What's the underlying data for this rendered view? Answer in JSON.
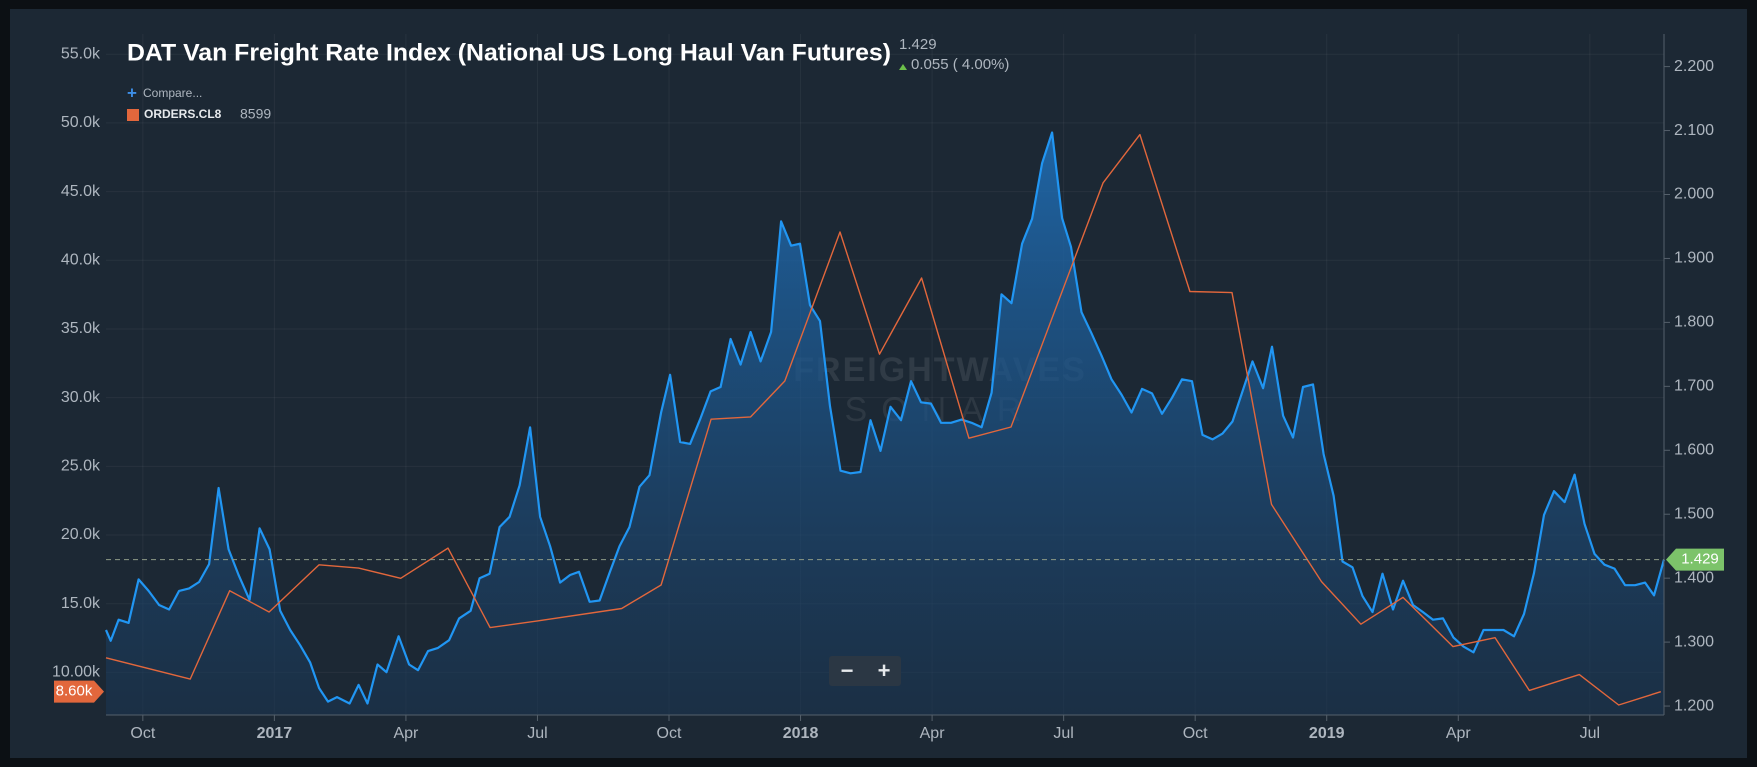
{
  "chart_data": {
    "type": "line",
    "title": "DAT Van Freight Rate Index (National US Long Haul Van Futures)",
    "price": 1.429,
    "change_label": "0.055 ( 4.00%)",
    "compare_label": "Compare...",
    "watermark": [
      "FREIGHTWAVES",
      "SONAR"
    ],
    "controls": [
      "−",
      "+"
    ],
    "xlim": [
      2016.68,
      2019.641
    ],
    "xticks": [
      {
        "value": 2016.75,
        "label": "Oct"
      },
      2017,
      {
        "value": 2017.25,
        "label": "Apr"
      },
      {
        "value": 2017.5,
        "label": "Jul"
      },
      {
        "value": 2017.75,
        "label": "Oct"
      },
      2018,
      {
        "value": 2018.25,
        "label": "Apr"
      },
      {
        "value": 2018.5,
        "label": "Jul"
      },
      {
        "value": 2018.75,
        "label": "Oct"
      },
      2019,
      {
        "value": 2019.25,
        "label": "Apr"
      },
      {
        "value": 2019.5,
        "label": "Jul"
      }
    ],
    "ylim": [
      6900,
      56470
    ],
    "yticks": [
      {
        "value": 10000,
        "label": "10.00k"
      },
      {
        "value": 15000,
        "label": "15.0k"
      },
      {
        "value": 20000,
        "label": "20.0k"
      },
      {
        "value": 25000,
        "label": "25.0k"
      },
      {
        "value": 30000,
        "label": "30.0k"
      },
      {
        "value": 35000,
        "label": "35.0k"
      },
      {
        "value": 40000,
        "label": "40.0k"
      },
      {
        "value": 45000,
        "label": "45.0k"
      },
      {
        "value": 50000,
        "label": "50.0k"
      },
      {
        "value": 55000,
        "label": "55.0k"
      }
    ],
    "y2lim": [
      1.186,
      2.251
    ],
    "y2ticks": [
      {
        "value": 1.2,
        "label": "1.200"
      },
      {
        "value": 1.3,
        "label": "1.300"
      },
      {
        "value": 1.4,
        "label": "1.400"
      },
      {
        "value": 1.5,
        "label": "1.500"
      },
      {
        "value": 1.6,
        "label": "1.600"
      },
      {
        "value": 1.7,
        "label": "1.700"
      },
      {
        "value": 1.8,
        "label": "1.800"
      },
      {
        "value": 1.9,
        "label": "1.900"
      },
      {
        "value": 2.0,
        "label": "2.000"
      },
      {
        "value": 2.1,
        "label": "2.100"
      },
      {
        "value": 2.2,
        "label": "2.200"
      }
    ],
    "grid": true,
    "series": [
      {
        "color": "#2196f3",
        "axis": "y2",
        "fill": true,
        "x": [
          2016.68,
          2016.689,
          2016.704,
          2016.723,
          2016.742,
          2016.761,
          2016.781,
          2016.8,
          2016.819,
          2016.838,
          2016.857,
          2016.876,
          2016.894,
          2016.913,
          2016.932,
          2016.953,
          2016.972,
          2016.991,
          2017.011,
          2017.03,
          2017.049,
          2017.068,
          2017.085,
          2017.102,
          2017.119,
          2017.143,
          2017.16,
          2017.177,
          2017.196,
          2017.213,
          2017.236,
          2017.256,
          2017.273,
          2017.292,
          2017.311,
          2017.332,
          2017.351,
          2017.373,
          2017.39,
          2017.409,
          2017.428,
          2017.447,
          2017.466,
          2017.486,
          2017.505,
          2017.524,
          2017.543,
          2017.562,
          2017.579,
          2017.599,
          2017.618,
          2017.637,
          2017.656,
          2017.675,
          2017.694,
          2017.713,
          2017.735,
          2017.752,
          2017.771,
          2017.79,
          2017.809,
          2017.829,
          2017.848,
          2017.867,
          2017.886,
          2017.905,
          2017.924,
          2017.944,
          2017.963,
          2017.982,
          2017.999,
          2018.018,
          2018.037,
          2018.056,
          2018.076,
          2018.095,
          2018.114,
          2018.133,
          2018.152,
          2018.171,
          2018.191,
          2018.21,
          2018.229,
          2018.248,
          2018.267,
          2018.286,
          2018.306,
          2018.325,
          2018.344,
          2018.363,
          2018.382,
          2018.401,
          2018.421,
          2018.44,
          2018.459,
          2018.478,
          2018.497,
          2018.514,
          2018.534,
          2018.553,
          2018.572,
          2018.591,
          2018.61,
          2018.629,
          2018.649,
          2018.668,
          2018.687,
          2018.706,
          2018.725,
          2018.744,
          2018.764,
          2018.783,
          2018.802,
          2018.821,
          2018.84,
          2018.859,
          2018.879,
          2018.896,
          2018.917,
          2018.936,
          2018.955,
          2018.974,
          2018.994,
          2019.013,
          2019.03,
          2019.049,
          2019.068,
          2019.087,
          2019.106,
          2019.126,
          2019.145,
          2019.164,
          2019.183,
          2019.202,
          2019.221,
          2019.241,
          2019.26,
          2019.279,
          2019.298,
          2019.317,
          2019.336,
          2019.356,
          2019.375,
          2019.394,
          2019.413,
          2019.432,
          2019.452,
          2019.471,
          2019.49,
          2019.509,
          2019.528,
          2019.547,
          2019.567,
          2019.586,
          2019.605,
          2019.622,
          2019.641
        ],
        "values": [
          1.319,
          1.302,
          1.335,
          1.33,
          1.398,
          1.38,
          1.358,
          1.351,
          1.38,
          1.384,
          1.394,
          1.422,
          1.541,
          1.445,
          1.405,
          1.366,
          1.478,
          1.445,
          1.349,
          1.319,
          1.295,
          1.268,
          1.228,
          1.207,
          1.214,
          1.204,
          1.233,
          1.204,
          1.265,
          1.253,
          1.309,
          1.265,
          1.256,
          1.286,
          1.291,
          1.303,
          1.337,
          1.349,
          1.4,
          1.407,
          1.48,
          1.496,
          1.545,
          1.636,
          1.496,
          1.45,
          1.393,
          1.405,
          1.41,
          1.363,
          1.365,
          1.408,
          1.45,
          1.48,
          1.543,
          1.561,
          1.659,
          1.718,
          1.613,
          1.61,
          1.648,
          1.692,
          1.699,
          1.774,
          1.734,
          1.785,
          1.739,
          1.785,
          1.958,
          1.92,
          1.923,
          1.827,
          1.802,
          1.669,
          1.568,
          1.564,
          1.566,
          1.647,
          1.599,
          1.668,
          1.647,
          1.708,
          1.675,
          1.673,
          1.643,
          1.643,
          1.648,
          1.643,
          1.636,
          1.69,
          1.844,
          1.83,
          1.923,
          1.962,
          2.049,
          2.097,
          1.963,
          1.918,
          1.816,
          1.783,
          1.748,
          1.711,
          1.687,
          1.659,
          1.696,
          1.689,
          1.657,
          1.682,
          1.711,
          1.708,
          1.624,
          1.617,
          1.626,
          1.645,
          1.692,
          1.739,
          1.697,
          1.762,
          1.654,
          1.62,
          1.699,
          1.703,
          1.594,
          1.529,
          1.426,
          1.417,
          1.372,
          1.347,
          1.407,
          1.351,
          1.396,
          1.358,
          1.347,
          1.335,
          1.337,
          1.307,
          1.293,
          1.284,
          1.319,
          1.319,
          1.319,
          1.309,
          1.344,
          1.408,
          1.499,
          1.536,
          1.519,
          1.562,
          1.485,
          1.438,
          1.421,
          1.415,
          1.389,
          1.389,
          1.393,
          1.373,
          1.429
        ]
      },
      {
        "name": "ORDERS.CL8",
        "color": "#e2673c",
        "axis": "y",
        "last_value": 8599,
        "tag_label": "8.60k",
        "x": [
          2016.68,
          2016.84,
          2016.915,
          2016.99,
          2017.085,
          2017.16,
          2017.24,
          2017.33,
          2017.41,
          2017.5,
          2017.66,
          2017.735,
          2017.83,
          2017.905,
          2017.97,
          2018.075,
          2018.15,
          2018.23,
          2018.32,
          2018.4,
          2018.575,
          2018.645,
          2018.74,
          2018.82,
          2018.895,
          2018.99,
          2019.065,
          2019.145,
          2019.24,
          2019.32,
          2019.385,
          2019.48,
          2019.555,
          2019.635
        ],
        "values": [
          11060,
          9510,
          15950,
          14400,
          17830,
          17590,
          16850,
          19050,
          13260,
          13750,
          14650,
          16360,
          28430,
          28600,
          31210,
          42060,
          33160,
          38710,
          27050,
          27860,
          45640,
          49150,
          37730,
          37650,
          22230,
          16610,
          13510,
          15460,
          11880,
          12530,
          8690,
          9840,
          7630,
          8599
        ]
      }
    ]
  }
}
